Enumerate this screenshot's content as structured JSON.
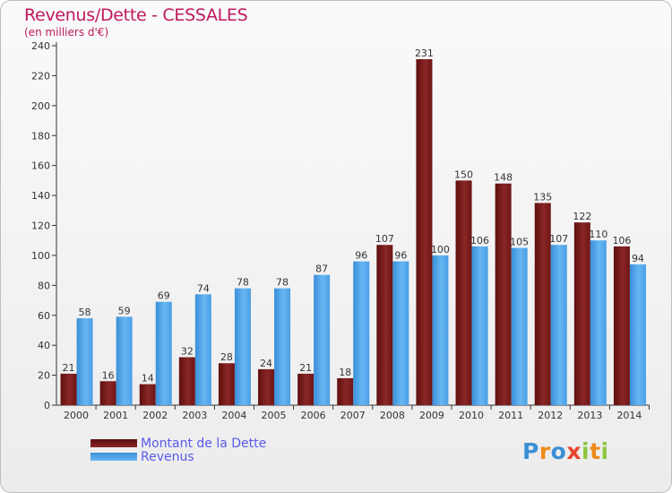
{
  "header": {
    "title": "Revenus/Dette - CESSALES",
    "subtitle": "(en milliers d'€)"
  },
  "legend": {
    "debt_label": "Montant de la Dette",
    "revenue_label": "Revenus"
  },
  "brand": {
    "letters": [
      "P",
      "r",
      "o",
      "x",
      "i",
      "t",
      "i"
    ],
    "colors": [
      "#3b8fd6",
      "#f08a1c",
      "#3b8fd6",
      "#e8432d",
      "#8cc63f",
      "#f08a1c",
      "#8cc63f"
    ]
  },
  "colors": {
    "debt": "#7a1616",
    "debt_light": "#8f2a2a",
    "revenue": "#4a9fe6",
    "revenue_light": "#62b4f2",
    "title": "#c0185f"
  },
  "chart_data": {
    "type": "bar",
    "title": "Revenus/Dette - CESSALES",
    "ylabel": "(en milliers d'€)",
    "categories": [
      "2000",
      "2001",
      "2002",
      "2003",
      "2004",
      "2005",
      "2006",
      "2007",
      "2008",
      "2009",
      "2010",
      "2011",
      "2012",
      "2013",
      "2014"
    ],
    "series": [
      {
        "name": "Montant de la Dette",
        "values": [
          21,
          16,
          14,
          32,
          28,
          24,
          21,
          18,
          107,
          231,
          150,
          148,
          135,
          122,
          106
        ]
      },
      {
        "name": "Revenus",
        "values": [
          58,
          59,
          69,
          74,
          78,
          78,
          87,
          96,
          96,
          100,
          106,
          105,
          107,
          110,
          94
        ]
      }
    ],
    "ylim": [
      0,
      240
    ],
    "yticks": [
      0,
      20,
      40,
      60,
      80,
      100,
      120,
      140,
      160,
      180,
      200,
      220,
      240
    ],
    "grid": false,
    "legend_position": "bottom-left"
  }
}
